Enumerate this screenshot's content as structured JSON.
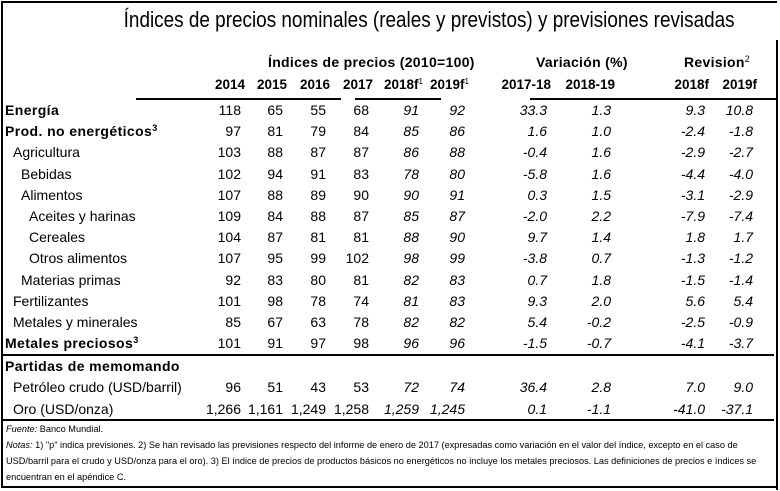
{
  "title": "Índices de precios nominales (reales y previstos) y previsiones revisadas",
  "groups": {
    "indices": "Índices de precios (2010=100)",
    "variacion": "Variación (%)",
    "revision": "Revision",
    "revision_sup": "2"
  },
  "columns": {
    "c2014": "2014",
    "c2015": "2015",
    "c2016": "2016",
    "c2017": "2017",
    "c2018f": "2018f",
    "c2018f_sup": "1",
    "c2019f": "2019f",
    "c2019f_sup": "1",
    "v1718": "2017-18",
    "v1819": "2018-19",
    "r2018f": "2018f",
    "r2019f": "2019f"
  },
  "rows": [
    {
      "label": "Energía",
      "sup": "",
      "level": 0,
      "bold": true,
      "values": [
        "118",
        "65",
        "55",
        "68",
        "91",
        "92",
        "33.3",
        "1.3",
        "9.3",
        "10.8"
      ]
    },
    {
      "label": "Prod. no energéticos",
      "sup": "3",
      "level": 0,
      "bold": true,
      "values": [
        "97",
        "81",
        "79",
        "84",
        "85",
        "86",
        "1.6",
        "1.0",
        "-2.4",
        "-1.8"
      ]
    },
    {
      "label": "Agricultura",
      "sup": "",
      "level": 1,
      "bold": false,
      "values": [
        "103",
        "88",
        "87",
        "87",
        "86",
        "88",
        "-0.4",
        "1.6",
        "-2.9",
        "-2.7"
      ]
    },
    {
      "label": "Bebidas",
      "sup": "",
      "level": 2,
      "bold": false,
      "values": [
        "102",
        "94",
        "91",
        "83",
        "78",
        "80",
        "-5.8",
        "1.6",
        "-4.4",
        "-4.0"
      ]
    },
    {
      "label": "Alimentos",
      "sup": "",
      "level": 2,
      "bold": false,
      "values": [
        "107",
        "88",
        "89",
        "90",
        "90",
        "91",
        "0.3",
        "1.5",
        "-3.1",
        "-2.9"
      ]
    },
    {
      "label": "Aceites y harinas",
      "sup": "",
      "level": 3,
      "bold": false,
      "values": [
        "109",
        "84",
        "88",
        "87",
        "85",
        "87",
        "-2.0",
        "2.2",
        "-7.9",
        "-7.4"
      ]
    },
    {
      "label": "Cereales",
      "sup": "",
      "level": 3,
      "bold": false,
      "values": [
        "104",
        "87",
        "81",
        "81",
        "88",
        "90",
        "9.7",
        "1.4",
        "1.8",
        "1.7"
      ]
    },
    {
      "label": "Otros alimentos",
      "sup": "",
      "level": 3,
      "bold": false,
      "values": [
        "107",
        "95",
        "99",
        "102",
        "98",
        "99",
        "-3.8",
        "0.7",
        "-1.3",
        "-1.2"
      ]
    },
    {
      "label": "Materias primas",
      "sup": "",
      "level": 2,
      "bold": false,
      "values": [
        "92",
        "83",
        "80",
        "81",
        "82",
        "83",
        "0.7",
        "1.8",
        "-1.5",
        "-1.4"
      ]
    },
    {
      "label": "Fertilizantes",
      "sup": "",
      "level": 1,
      "bold": false,
      "values": [
        "101",
        "98",
        "78",
        "74",
        "81",
        "83",
        "9.3",
        "2.0",
        "5.6",
        "5.4"
      ]
    },
    {
      "label": "Metales y minerales",
      "sup": "",
      "level": 1,
      "bold": false,
      "values": [
        "85",
        "67",
        "63",
        "78",
        "82",
        "82",
        "5.4",
        "-0.2",
        "-2.5",
        "-0.9"
      ]
    },
    {
      "label": "Metales preciosos",
      "sup": "3",
      "level": 0,
      "bold": true,
      "values": [
        "101",
        "91",
        "97",
        "98",
        "96",
        "96",
        "-1.5",
        "-0.7",
        "-4.1",
        "-3.7"
      ]
    }
  ],
  "memo": {
    "title": "Partidas de memomando",
    "rows": [
      {
        "label": "Petróleo crudo (USD/barril)",
        "values": [
          "96",
          "51",
          "43",
          "53",
          "72",
          "74",
          "36.4",
          "2.8",
          "7.0",
          "9.0"
        ]
      },
      {
        "label": "Oro (USD/onza)",
        "values": [
          "1,266",
          "1,161",
          "1,249",
          "1,258",
          "1,259",
          "1,245",
          "0.1",
          "-1.1",
          "-41.0",
          "-37.1"
        ]
      }
    ]
  },
  "notes": {
    "source_label": "Fuente:",
    "source_text": " Banco Mundial.",
    "notes_label": "Notas:",
    "notes_text": "  1) \"p\" indica previsiones. 2) Se han revisado las previsiones respecto del informe de enero de 2017 (expresadas como variación en el valor del índice, excepto en el caso de USD/barril para el crudo y USD/onza para el oro). 3) El índice de precios de productos básicos no energéticos no incluye los metales preciosos. Las definiciones de precios e índices se encuentran en el apéndice C."
  }
}
